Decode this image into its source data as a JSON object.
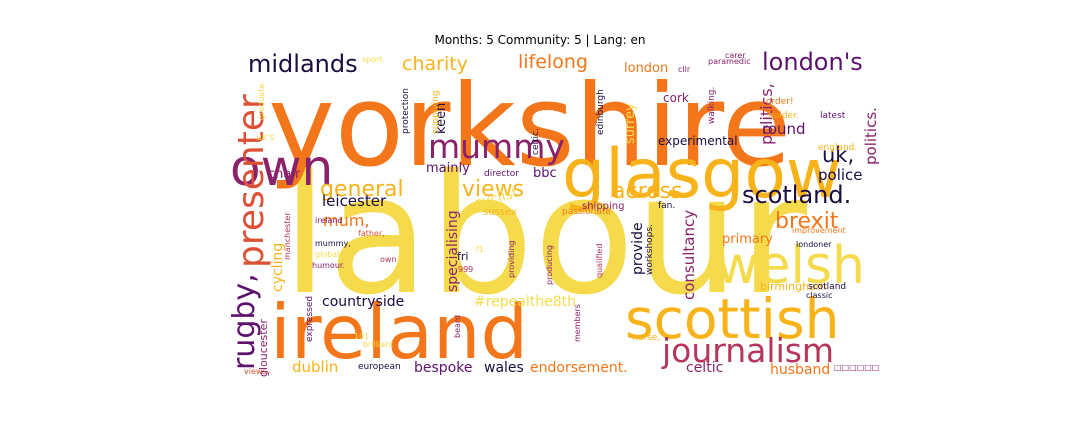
{
  "title": "Months: 5 Community: 5 | Lang: en",
  "palette": {
    "yellow": "#f5db4c",
    "gold": "#f8b31a",
    "orange": "#f3771a",
    "red": "#dc5136",
    "crimson": "#b5365a",
    "plum": "#8a226a",
    "purple": "#5d126e",
    "navy": "#1b0c41",
    "pale": "#f2ee78"
  },
  "words": [
    {
      "text": "labour",
      "color": "yellow"
    },
    {
      "text": "yorkshire",
      "color": "orange"
    },
    {
      "text": "ireland",
      "color": "orange"
    },
    {
      "text": "glasgow",
      "color": "gold"
    },
    {
      "text": "scottish",
      "color": "gold"
    },
    {
      "text": "welsh",
      "color": "yellow"
    },
    {
      "text": "own",
      "color": "plum"
    },
    {
      "text": "presenter",
      "color": "red"
    },
    {
      "text": "journalism",
      "color": "crimson"
    },
    {
      "text": "mummy",
      "color": "plum"
    },
    {
      "text": "rugby,",
      "color": "purple"
    },
    {
      "text": "midlands",
      "color": "navy"
    },
    {
      "text": "london's",
      "color": "purple"
    },
    {
      "text": "scotland.",
      "color": "navy"
    },
    {
      "text": "general",
      "color": "gold"
    },
    {
      "text": "views",
      "color": "gold"
    },
    {
      "text": "across",
      "color": "gold"
    },
    {
      "text": "brexit",
      "color": "orange"
    },
    {
      "text": "charity",
      "color": "gold"
    },
    {
      "text": "lifelong",
      "color": "orange"
    },
    {
      "text": "uk,",
      "color": "navy"
    },
    {
      "text": "politics,",
      "color": "plum"
    },
    {
      "text": "politics.",
      "color": "plum"
    },
    {
      "text": "round",
      "color": "purple"
    },
    {
      "text": "police",
      "color": "navy"
    },
    {
      "text": "consultancy",
      "color": "plum"
    },
    {
      "text": "specialising",
      "color": "plum"
    },
    {
      "text": "cycling",
      "color": "gold"
    },
    {
      "text": "mum,",
      "color": "orange"
    },
    {
      "text": "leicester",
      "color": "navy"
    },
    {
      "text": "cyclist",
      "color": "yellow"
    },
    {
      "text": "countryside",
      "color": "navy"
    },
    {
      "text": "#repealthe8th",
      "color": "yellow"
    },
    {
      "text": "dublin",
      "color": "gold"
    },
    {
      "text": "bespoke",
      "color": "purple"
    },
    {
      "text": "wales",
      "color": "navy"
    },
    {
      "text": "endorsement.",
      "color": "orange"
    },
    {
      "text": "celtic",
      "color": "plum"
    },
    {
      "text": "husband",
      "color": "orange"
    },
    {
      "text": "gloucester",
      "color": "plum"
    },
    {
      "text": "keen",
      "color": "navy"
    },
    {
      "text": "mainly",
      "color": "purple"
    },
    {
      "text": "bbc",
      "color": "purple"
    },
    {
      "text": "chair",
      "color": "plum"
    },
    {
      "text": "provide",
      "color": "navy"
    },
    {
      "text": "primary",
      "color": "orange"
    },
    {
      "text": "london",
      "color": "orange"
    },
    {
      "text": "cork",
      "color": "plum"
    },
    {
      "text": "experimental",
      "color": "navy"
    },
    {
      "text": "surrey",
      "color": "yellow"
    },
    {
      "text": "birmingham",
      "color": "gold"
    },
    {
      "text": "sussex",
      "color": "gold"
    },
    {
      "text": "shipping",
      "color": "plum"
    },
    {
      "text": "fan.",
      "color": "navy"
    },
    {
      "text": "director",
      "color": "purple"
    },
    {
      "text": "workshops.",
      "color": "navy"
    },
    {
      "text": "protection",
      "color": "navy"
    },
    {
      "text": "supplying",
      "color": "gold"
    },
    {
      "text": "celtic.",
      "color": "navy"
    },
    {
      "text": "edinburgh",
      "color": "navy"
    },
    {
      "text": "walking.",
      "color": "plum"
    },
    {
      "text": "england.",
      "color": "gold"
    },
    {
      "text": "holder.",
      "color": "gold"
    },
    {
      "text": "order!",
      "color": "orange"
    },
    {
      "text": "latest",
      "color": "purple"
    },
    {
      "text": "carer",
      "color": "plum"
    },
    {
      "text": "paramedic",
      "color": "plum"
    },
    {
      "text": "cllr",
      "color": "plum"
    },
    {
      "text": "sport.",
      "color": "yellow"
    },
    {
      "text": "graduate.",
      "color": "yellow"
    },
    {
      "text": "uk's",
      "color": "yellow"
    },
    {
      "text": "passionate",
      "color": "orange"
    },
    {
      "text": "improvement",
      "color": "orange"
    },
    {
      "text": "londoner",
      "color": "navy"
    },
    {
      "text": "scotland",
      "color": "navy"
    },
    {
      "text": "classic",
      "color": "navy"
    },
    {
      "text": "ireland",
      "color": "plum"
    },
    {
      "text": "father,",
      "color": "red"
    },
    {
      "text": "mummy,",
      "color": "navy"
    },
    {
      "text": "global",
      "color": "yellow"
    },
    {
      "text": "humour.",
      "color": "plum"
    },
    {
      "text": "manchester",
      "color": "crimson"
    },
    {
      "text": "own",
      "color": "crimson"
    },
    {
      "text": "fri",
      "color": "navy"
    },
    {
      "text": "999",
      "color": "crimson"
    },
    {
      "text": "expressed",
      "color": "purple"
    },
    {
      "text": "101",
      "color": "yellow"
    },
    {
      "text": "brilliant",
      "color": "yellow"
    },
    {
      "text": "beard",
      "color": "plum"
    },
    {
      "text": "european",
      "color": "navy"
    },
    {
      "text": "providing",
      "color": "plum"
    },
    {
      "text": "producing",
      "color": "plum"
    },
    {
      "text": "qualified",
      "color": "crimson"
    },
    {
      "text": "members",
      "color": "plum"
    },
    {
      "text": "nurse,",
      "color": "gold"
    },
    {
      "text": "views.",
      "color": "red"
    },
    {
      "text": "□□□□□□",
      "color": "plum"
    },
    {
      "text": "f1",
      "color": "yellow"
    }
  ]
}
